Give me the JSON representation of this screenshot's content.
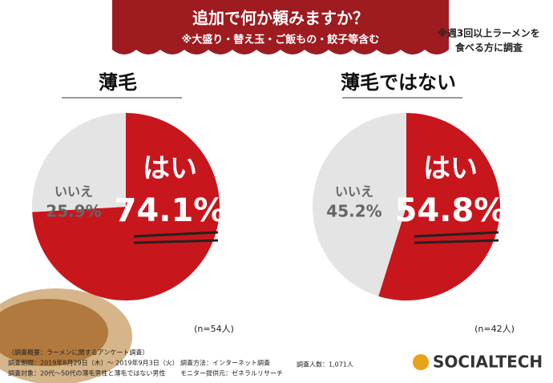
{
  "header": {
    "title": "追加で何か頼みますか？",
    "subtitle": "※大盛り・替え玉・ご飯もの・餃子等含む"
  },
  "note": [
    "※週3回以上ラーメンを",
    "食べる方に調査"
  ],
  "chart_data": [
    {
      "type": "pie",
      "title": "薄毛",
      "categories": [
        "はい",
        "いいえ"
      ],
      "values": [
        74.1,
        25.9
      ],
      "value_labels": [
        "74.1%",
        "25.9%"
      ],
      "colors": [
        "#c8161d",
        "#e4e4e4"
      ],
      "annotation": "(n=54人)"
    },
    {
      "type": "pie",
      "title": "薄毛ではない",
      "categories": [
        "はい",
        "いいえ"
      ],
      "values": [
        54.8,
        45.2
      ],
      "value_labels": [
        "54.8%",
        "45.2%"
      ],
      "colors": [
        "#c8161d",
        "#e4e4e4"
      ],
      "annotation": "(n=42人)"
    }
  ],
  "footer": {
    "items": [
      "（調査概要：ラーメンに関するアンケート調査）",
      "調査期間：2019年8月29日（木）～ 2019年9月3日（火）",
      "調査対象：20代～50代の薄毛男性と薄毛ではない男性",
      "調査方法：インターネット調査",
      "モニター提供元：ゼネラルリサーチ",
      "調査人数：1,071人"
    ],
    "logo": "SOCIALTECH"
  }
}
